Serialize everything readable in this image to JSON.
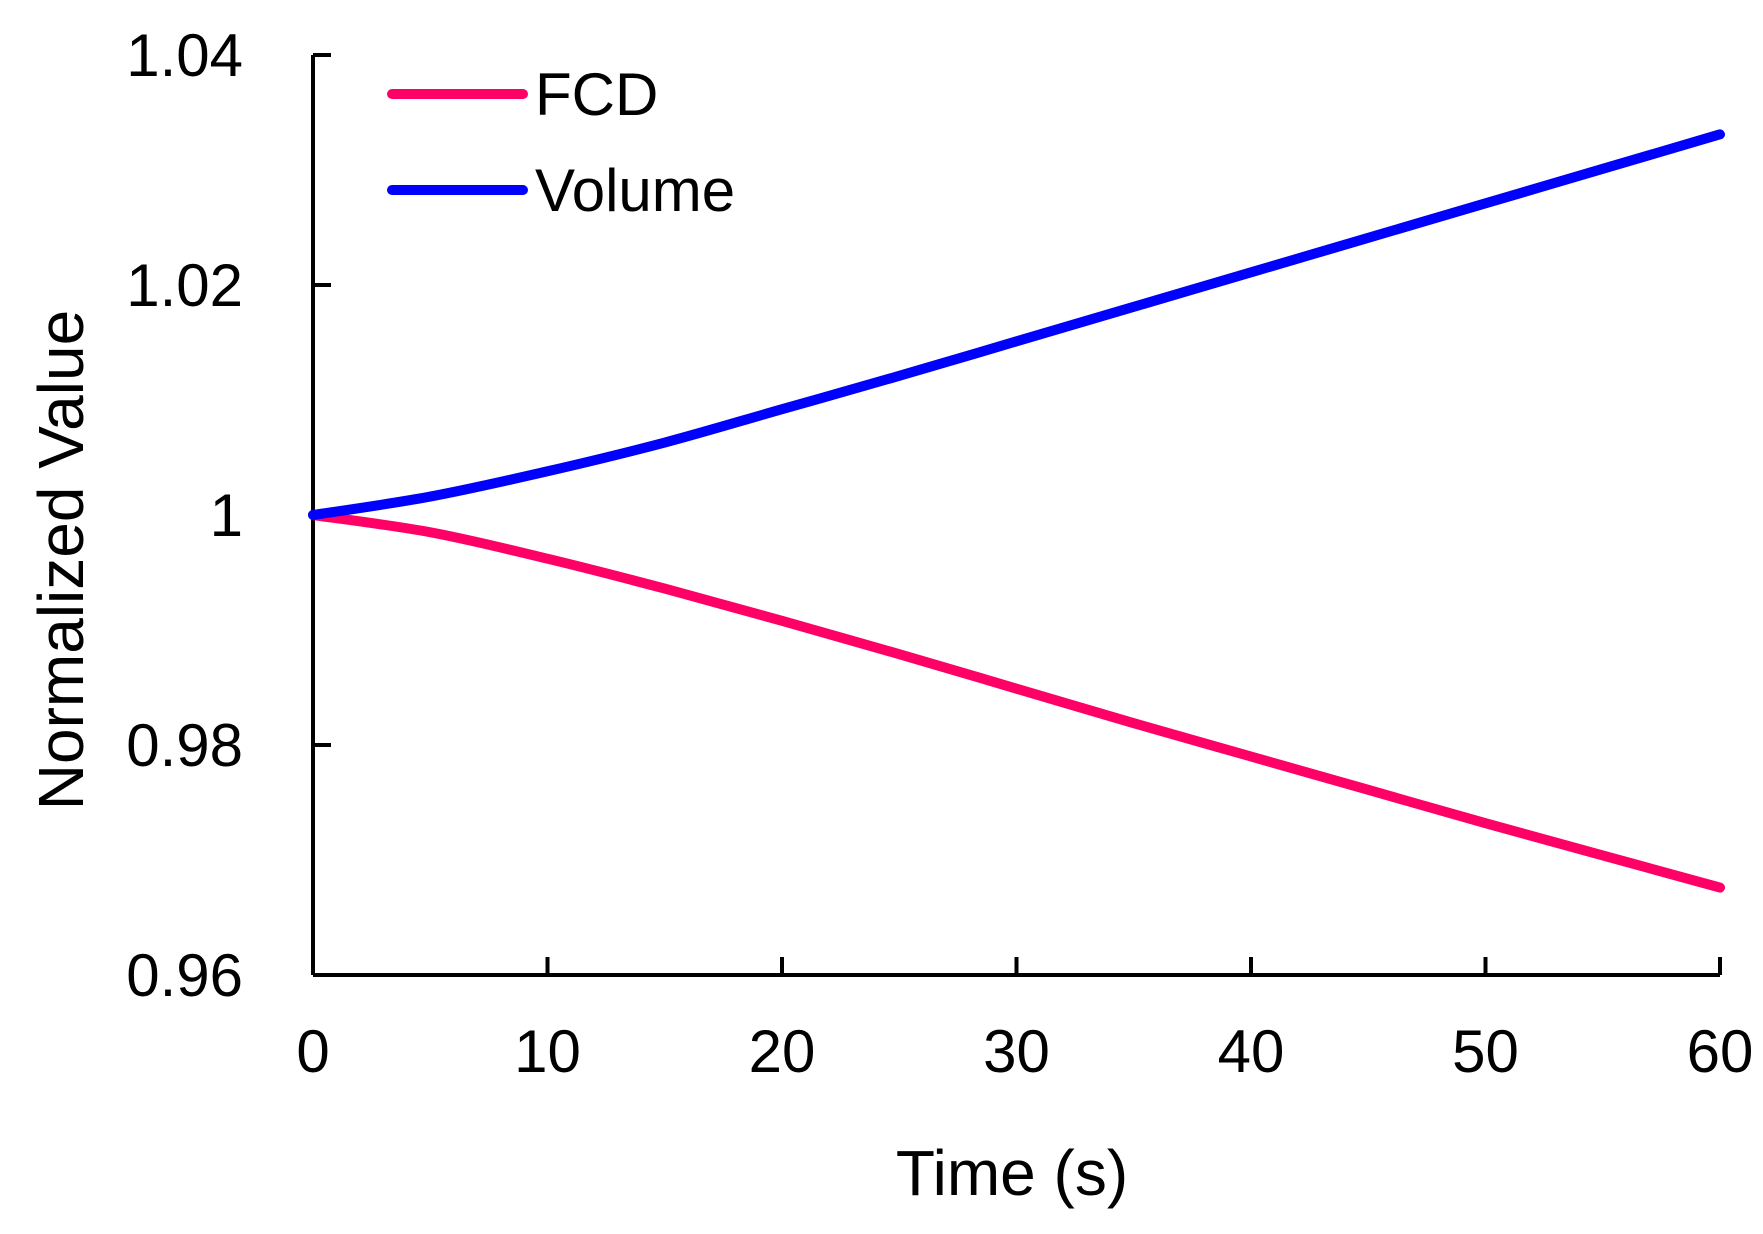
{
  "chart_data": {
    "type": "line",
    "title": "",
    "xlabel": "Time (s)",
    "ylabel": "Normalized Value",
    "xlim": [
      0,
      60
    ],
    "ylim": [
      0.96,
      1.04
    ],
    "x_ticks": [
      0,
      10,
      20,
      30,
      40,
      50,
      60
    ],
    "x_tick_labels": [
      "0",
      "10",
      "20",
      "30",
      "40",
      "50",
      "60"
    ],
    "y_ticks": [
      0.96,
      0.98,
      1.0,
      1.02,
      1.04
    ],
    "y_tick_labels": [
      "0.96",
      "0.98",
      "1",
      "1.02",
      "1.04"
    ],
    "grid": false,
    "legend_position": "top-left",
    "series": [
      {
        "name": "FCD",
        "color": "#ff0066",
        "x": [
          0,
          5,
          10,
          15,
          20,
          25,
          30,
          35,
          40,
          45,
          50,
          55,
          60
        ],
        "values": [
          1.0,
          0.9985,
          0.9962,
          0.9936,
          0.9908,
          0.9879,
          0.9849,
          0.9819,
          0.979,
          0.9761,
          0.9732,
          0.9704,
          0.9676
        ]
      },
      {
        "name": "Volume",
        "color": "#0000ff",
        "x": [
          0,
          5,
          10,
          15,
          20,
          25,
          30,
          35,
          40,
          45,
          50,
          55,
          60
        ],
        "values": [
          1.0,
          1.0016,
          1.0038,
          1.0063,
          1.0092,
          1.0121,
          1.0151,
          1.0181,
          1.0211,
          1.0241,
          1.0271,
          1.0301,
          1.0331
        ]
      }
    ]
  }
}
